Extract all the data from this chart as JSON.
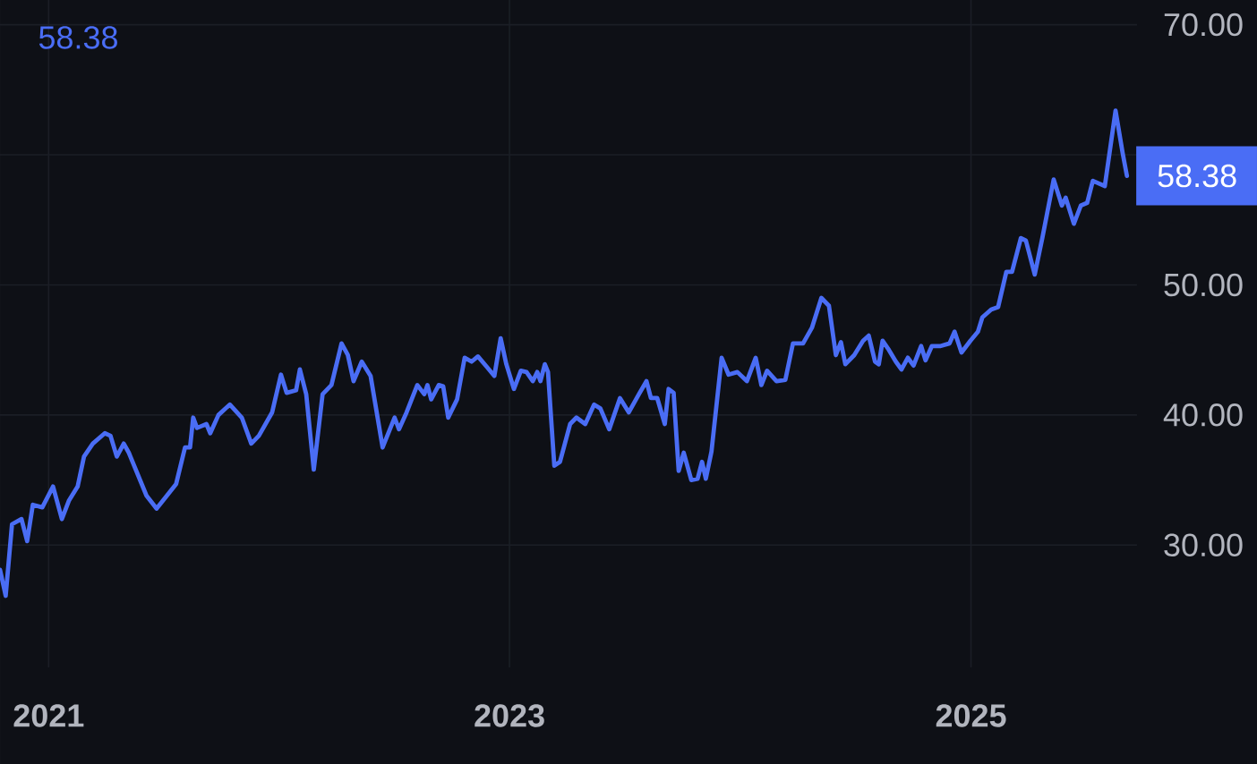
{
  "chart_data": {
    "type": "line",
    "title": "58.38",
    "x": [
      "2020-10-16",
      "2020-10-25",
      "2020-11-04",
      "2020-11-19",
      "2020-11-28",
      "2020-12-07",
      "2020-12-22",
      "2021-01-08",
      "2021-01-22",
      "2021-02-02",
      "2021-02-16",
      "2021-02-26",
      "2021-03-12",
      "2021-03-31",
      "2021-04-09",
      "2021-04-19",
      "2021-04-30",
      "2021-05-08",
      "2021-06-05",
      "2021-06-21",
      "2021-07-04",
      "2021-07-22",
      "2021-08-05",
      "2021-08-13",
      "2021-08-18",
      "2021-08-24",
      "2021-09-08",
      "2021-09-14",
      "2021-09-27",
      "2021-10-15",
      "2021-11-03",
      "2021-11-18",
      "2021-11-30",
      "2021-12-21",
      "2022-01-04",
      "2022-01-13",
      "2022-01-28",
      "2022-02-03",
      "2022-02-13",
      "2022-02-25",
      "2022-03-11",
      "2022-03-25",
      "2022-04-10",
      "2022-04-20",
      "2022-04-29",
      "2022-05-12",
      "2022-05-26",
      "2022-06-14",
      "2022-07-03",
      "2022-07-10",
      "2022-07-22",
      "2022-08-08",
      "2022-08-19",
      "2022-08-24",
      "2022-08-30",
      "2022-09-11",
      "2022-09-18",
      "2022-09-26",
      "2022-10-10",
      "2022-10-22",
      "2022-11-02",
      "2022-11-12",
      "2022-11-26",
      "2022-12-08",
      "2022-12-18",
      "2022-12-27",
      "2023-01-08",
      "2023-01-19",
      "2023-01-28",
      "2023-02-07",
      "2023-02-14",
      "2023-02-19",
      "2023-02-26",
      "2023-03-03",
      "2023-03-13",
      "2023-03-22",
      "2023-04-07",
      "2023-04-17",
      "2023-05-01",
      "2023-05-15",
      "2023-05-25",
      "2023-06-08",
      "2023-06-25",
      "2023-07-09",
      "2023-07-25",
      "2023-08-06",
      "2023-08-13",
      "2023-08-23",
      "2023-09-04",
      "2023-09-10",
      "2023-09-18",
      "2023-09-26",
      "2023-10-04",
      "2023-10-16",
      "2023-10-26",
      "2023-11-02",
      "2023-11-08",
      "2023-11-17",
      "2023-12-03",
      "2023-12-14",
      "2023-12-28",
      "2024-01-12",
      "2024-01-26",
      "2024-02-04",
      "2024-02-13",
      "2024-02-28",
      "2024-03-13",
      "2024-03-25",
      "2024-04-10",
      "2024-04-24",
      "2024-05-09",
      "2024-05-21",
      "2024-06-01",
      "2024-06-09",
      "2024-06-16",
      "2024-06-30",
      "2024-07-14",
      "2024-07-23",
      "2024-08-02",
      "2024-08-08",
      "2024-08-14",
      "2024-08-24",
      "2024-09-04",
      "2024-09-13",
      "2024-09-23",
      "2024-10-02",
      "2024-10-14",
      "2024-10-21",
      "2024-10-31",
      "2024-11-14",
      "2024-11-28",
      "2024-12-06",
      "2024-12-17",
      "2024-12-31",
      "2025-01-12",
      "2025-01-19",
      "2025-02-02",
      "2025-02-13",
      "2025-02-26",
      "2025-03-07",
      "2025-03-21",
      "2025-03-29",
      "2025-04-12",
      "2025-04-24",
      "2025-05-12",
      "2025-05-25",
      "2025-05-31",
      "2025-06-13",
      "2025-06-24",
      "2025-07-04",
      "2025-07-13",
      "2025-08-01",
      "2025-08-18",
      "2025-08-29",
      "2025-09-05"
    ],
    "series": [
      {
        "color": "#4a6df5",
        "values": [
          28.1,
          26.1,
          31.6,
          32.0,
          30.3,
          33.1,
          32.9,
          34.5,
          32.0,
          33.4,
          34.5,
          36.8,
          37.8,
          38.6,
          38.4,
          36.8,
          37.8,
          37.1,
          33.8,
          32.8,
          33.6,
          34.7,
          37.5,
          37.5,
          39.8,
          39.0,
          39.3,
          38.6,
          40.0,
          40.8,
          39.8,
          37.8,
          38.4,
          40.2,
          43.1,
          41.7,
          41.9,
          43.5,
          41.6,
          35.8,
          41.6,
          42.3,
          45.5,
          44.6,
          42.6,
          44.1,
          43.0,
          37.5,
          39.8,
          38.9,
          40.2,
          42.3,
          41.6,
          42.3,
          41.2,
          42.3,
          42.2,
          39.8,
          41.2,
          44.4,
          44.1,
          44.5,
          43.7,
          43.0,
          45.9,
          43.9,
          42.0,
          43.4,
          43.3,
          42.6,
          43.3,
          42.6,
          43.9,
          43.3,
          36.1,
          36.4,
          39.3,
          39.8,
          39.3,
          40.8,
          40.5,
          38.9,
          41.3,
          40.2,
          41.6,
          42.6,
          41.3,
          41.3,
          39.3,
          42.0,
          41.7,
          35.7,
          37.1,
          35.0,
          35.1,
          36.4,
          35.1,
          37.2,
          44.4,
          43.1,
          43.3,
          42.6,
          44.4,
          42.3,
          43.4,
          42.6,
          42.7,
          45.5,
          45.5,
          46.7,
          49.0,
          48.4,
          44.6,
          45.6,
          43.9,
          44.6,
          45.7,
          46.1,
          44.1,
          43.9,
          45.7,
          45.0,
          44.1,
          43.5,
          44.4,
          43.8,
          45.3,
          44.2,
          45.3,
          45.3,
          45.5,
          46.4,
          44.8,
          45.7,
          46.4,
          47.5,
          48.1,
          48.3,
          51.0,
          51.0,
          53.6,
          53.4,
          50.8,
          53.6,
          58.1,
          56.1,
          56.7,
          54.7,
          56.1,
          56.3,
          58.0,
          57.6,
          63.4,
          60.2,
          58.38
        ]
      }
    ],
    "xlim": [
      "2020-10-16",
      "2025-09-21"
    ],
    "ylim": [
      20.6,
      71.9
    ],
    "xticks": [
      "2021",
      "2023",
      "2025"
    ],
    "yticks": [
      {
        "value": 30,
        "label": "30.00"
      },
      {
        "value": 40,
        "label": "40.00"
      },
      {
        "value": 50,
        "label": "50.00"
      },
      {
        "value": 60,
        "label": null
      },
      {
        "value": 70,
        "label": "70.00"
      }
    ],
    "grid": true,
    "annotations": [
      {
        "text": "58.38",
        "x": "2025-09-05",
        "y": 58.38
      }
    ]
  }
}
